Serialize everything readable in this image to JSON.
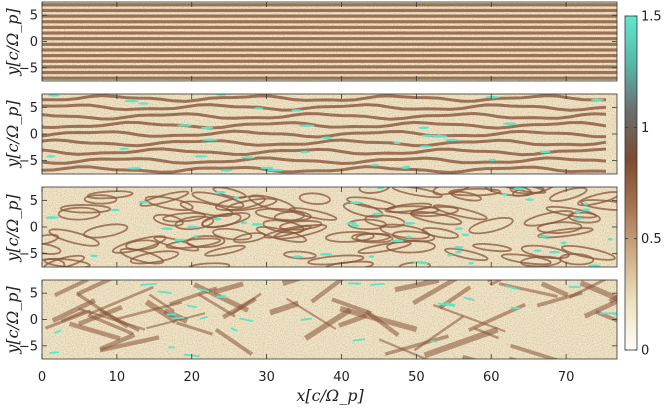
{
  "chart_data": {
    "type": "heatmap",
    "panels": [
      {
        "ylabel": "y[c/Ω_p]",
        "ylim": [
          -7.5,
          7.5
        ],
        "yticks": [
          -5,
          0,
          5
        ],
        "pattern": "stripes"
      },
      {
        "ylabel": "y[c/Ω_p]",
        "ylim": [
          -7.5,
          7.5
        ],
        "yticks": [
          -5,
          0,
          5
        ],
        "pattern": "filaments"
      },
      {
        "ylabel": "y[c/Ω_p]",
        "ylim": [
          -7.5,
          7.5
        ],
        "yticks": [
          -5,
          0,
          5
        ],
        "pattern": "cells"
      },
      {
        "ylabel": "y[c/Ω_p]",
        "ylim": [
          -7.5,
          7.5
        ],
        "yticks": [
          -5,
          0,
          5
        ],
        "pattern": "turbulent"
      }
    ],
    "xlabel": "x[c/Ω_p]",
    "xlim": [
      0,
      76.8
    ],
    "xticks": [
      0,
      10,
      20,
      30,
      40,
      50,
      60,
      70
    ],
    "colorbar": {
      "range": [
        0,
        1.5
      ],
      "ticks": [
        "0",
        "0.5",
        "1",
        "1.5"
      ],
      "tick_values": [
        0,
        0.5,
        1,
        1.5
      ],
      "colormap": [
        "#fefdf6",
        "#ede2bf",
        "#cfae86",
        "#a8734f",
        "#7c4a34",
        "#6a6e6e",
        "#57b7a8",
        "#5fe8cd"
      ]
    },
    "colors": {
      "light": "#f1e6c6",
      "mid": "#d2b08c",
      "dark": "#8a553b",
      "cyan": "#5ee3c9"
    }
  }
}
